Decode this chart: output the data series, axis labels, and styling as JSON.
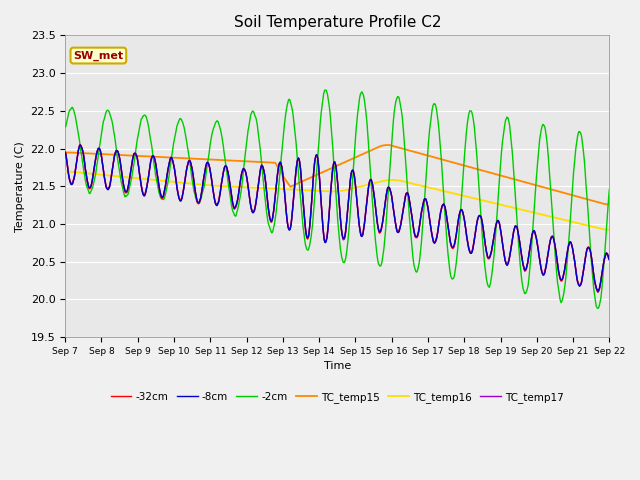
{
  "title": "Soil Temperature Profile C2",
  "xlabel": "Time",
  "ylabel": "Temperature (C)",
  "ylim": [
    19.5,
    23.5
  ],
  "xlim": [
    0,
    360
  ],
  "plot_bg": "#e8e8e8",
  "fig_bg": "#f0f0f0",
  "annotation_text": "SW_met",
  "annotation_bg": "#ffffcc",
  "annotation_border": "#ccaa00",
  "annotation_text_color": "#990000",
  "x_tick_labels": [
    "Sep 7",
    "Sep 8",
    "Sep 9",
    "Sep 10",
    "Sep 11",
    "Sep 12",
    "Sep 13",
    "Sep 14",
    "Sep 15",
    "Sep 16",
    "Sep 17",
    "Sep 18",
    "Sep 19",
    "Sep 20",
    "Sep 21",
    "Sep 22"
  ],
  "x_tick_positions": [
    0,
    24,
    48,
    72,
    96,
    120,
    144,
    168,
    192,
    216,
    240,
    264,
    288,
    312,
    336,
    360
  ],
  "legend_labels": [
    "-32cm",
    "-8cm",
    "-2cm",
    "TC_temp15",
    "TC_temp16",
    "TC_temp17"
  ],
  "colors": [
    "#ff0000",
    "#0000cc",
    "#00cc00",
    "#ff8800",
    "#ffdd00",
    "#9900cc"
  ],
  "line_widths": [
    1.0,
    1.0,
    1.0,
    1.3,
    1.3,
    1.0
  ]
}
